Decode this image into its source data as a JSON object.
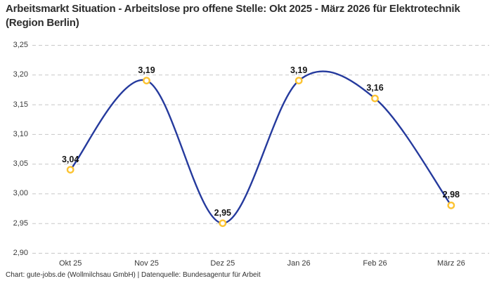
{
  "title": "Arbeitsmarkt Situation - Arbeitslose pro offene Stelle: Okt 2025 - März 2026 für Elektrotechnik (Region Berlin)",
  "footer": "Chart: gute-jobs.de (Wollmilchsau GmbH) | Datenquelle: Bundesagentur für Arbeit",
  "colors": {
    "line": "#253a9d",
    "marker_ring": "#fcc331",
    "marker_fill": "#ffffff",
    "grid": "#c8c8c8",
    "title_text": "#2d2d2d",
    "tick_text": "#3a3a3a",
    "value_label_text": "#141414"
  },
  "chart_data": {
    "type": "line",
    "curve": "smooth",
    "categories": [
      "Okt 25",
      "Nov 25",
      "Dez 25",
      "Jan 26",
      "Feb 26",
      "März 26"
    ],
    "values": [
      3.04,
      3.19,
      2.95,
      3.19,
      3.16,
      2.98
    ],
    "value_labels": [
      "3,04",
      "3,19",
      "2,95",
      "3,19",
      "3,16",
      "2,98"
    ],
    "title": "Arbeitsmarkt Situation - Arbeitslose pro offene Stelle: Okt 2025 - März 2026 für Elektrotechnik (Region Berlin)",
    "xlabel": "",
    "ylabel": "",
    "ylim": [
      2.9,
      3.25
    ],
    "yticks": [
      {
        "value": 3.25,
        "label": "3,25"
      },
      {
        "value": 3.2,
        "label": "3,20"
      },
      {
        "value": 3.15,
        "label": "3,15"
      },
      {
        "value": 3.1,
        "label": "3,10"
      },
      {
        "value": 3.05,
        "label": "3,05"
      },
      {
        "value": 3.0,
        "label": "3,00"
      },
      {
        "value": 2.95,
        "label": "2,95"
      },
      {
        "value": 2.9,
        "label": "2,90"
      }
    ],
    "grid": "horizontal-dashed",
    "legend_position": "none",
    "marker": "open-circle"
  }
}
